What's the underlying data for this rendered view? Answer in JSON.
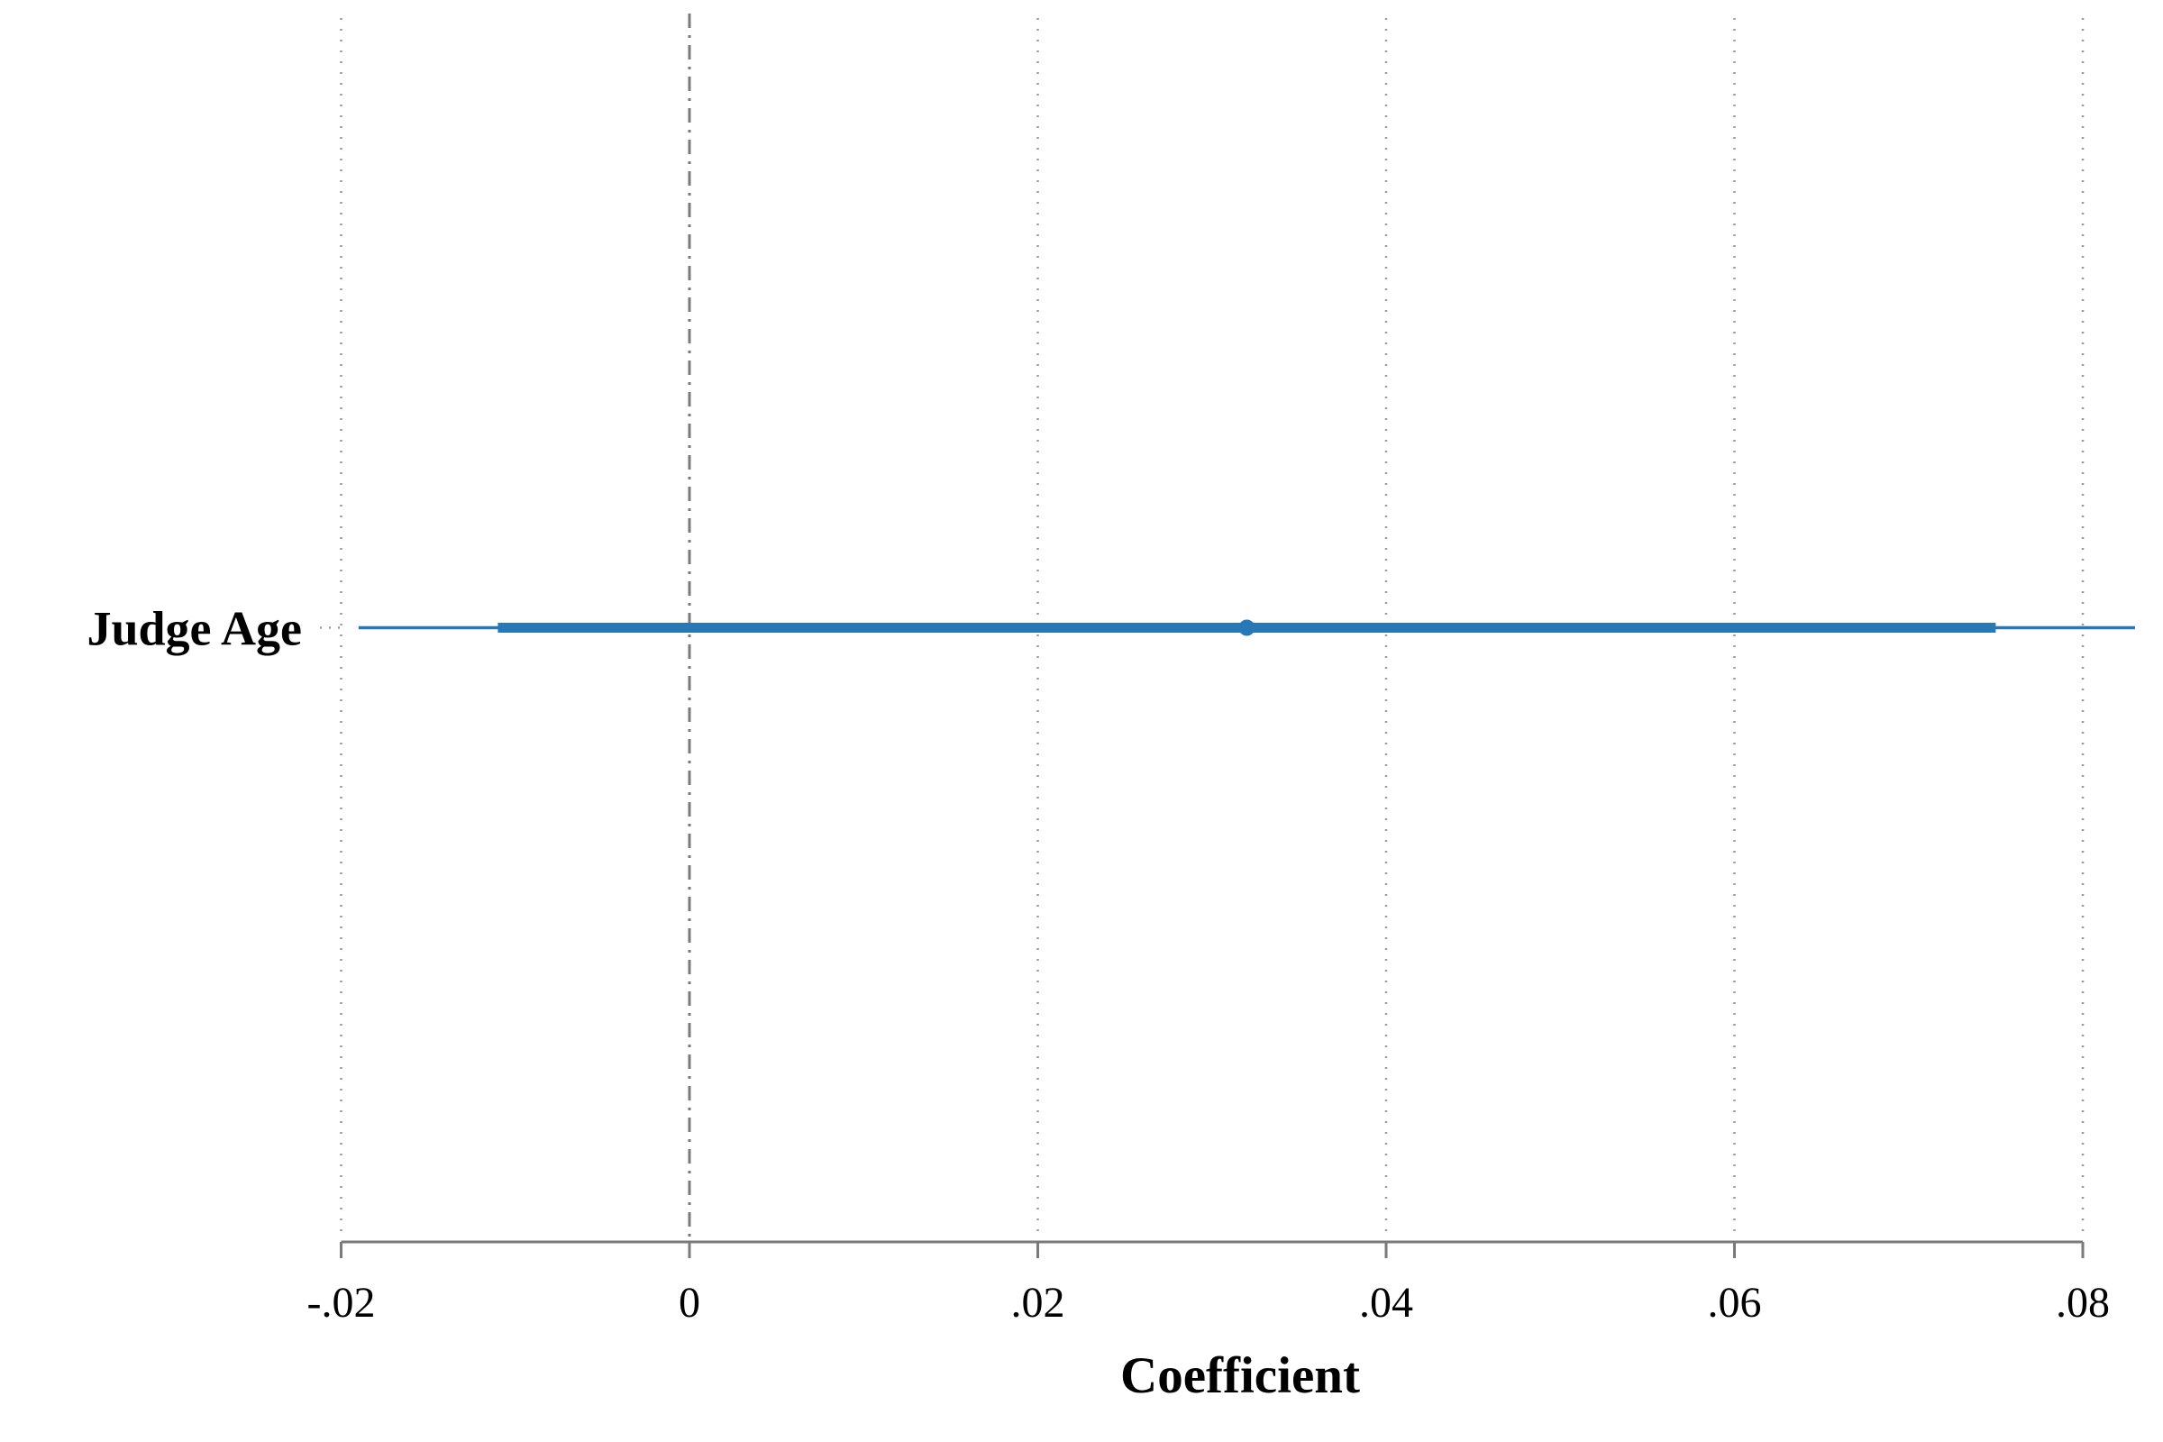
{
  "chart_data": {
    "type": "coefficient-plot",
    "orientation": "horizontal",
    "xlabel": "Coefficient",
    "xlim": [
      -0.02,
      0.083
    ],
    "x_ticks": [
      -0.02,
      0,
      0.02,
      0.04,
      0.06,
      0.08
    ],
    "x_tick_labels": [
      "-.02",
      "0",
      ".02",
      ".04",
      ".06",
      ".08"
    ],
    "vertical_grid": "dotted",
    "reference_line": {
      "x": 0,
      "style": "dashed"
    },
    "series_color": "#2878b8",
    "rows": [
      {
        "label": "Judge Age",
        "estimate": 0.032,
        "ci_inner": [
          -0.011,
          0.075
        ],
        "ci_outer": [
          -0.019,
          0.083
        ]
      }
    ]
  }
}
